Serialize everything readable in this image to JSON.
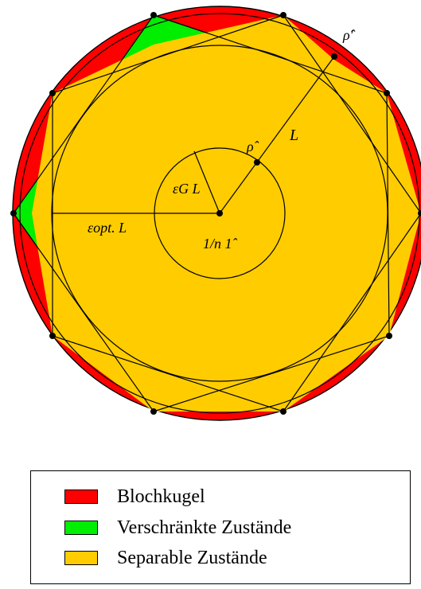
{
  "diagram": {
    "labels": {
      "rho_prime": "ρ̂′",
      "rho": "ρ̂",
      "L": "L",
      "epsG_L": "εG L",
      "epsOpt_L": "εopt. L",
      "identity_over_n": "1/n 1̂"
    },
    "colors": {
      "bloch_ball": "#ff0000",
      "entangled": "#00ee00",
      "separable": "#ffcc00",
      "outline": "#000000"
    }
  },
  "legend": {
    "items": [
      {
        "label": "Blochkugel",
        "color": "#ff0000"
      },
      {
        "label": "Verschränkte Zustände",
        "color": "#00ee00"
      },
      {
        "label": "Separable Zustände",
        "color": "#ffcc00"
      }
    ]
  }
}
